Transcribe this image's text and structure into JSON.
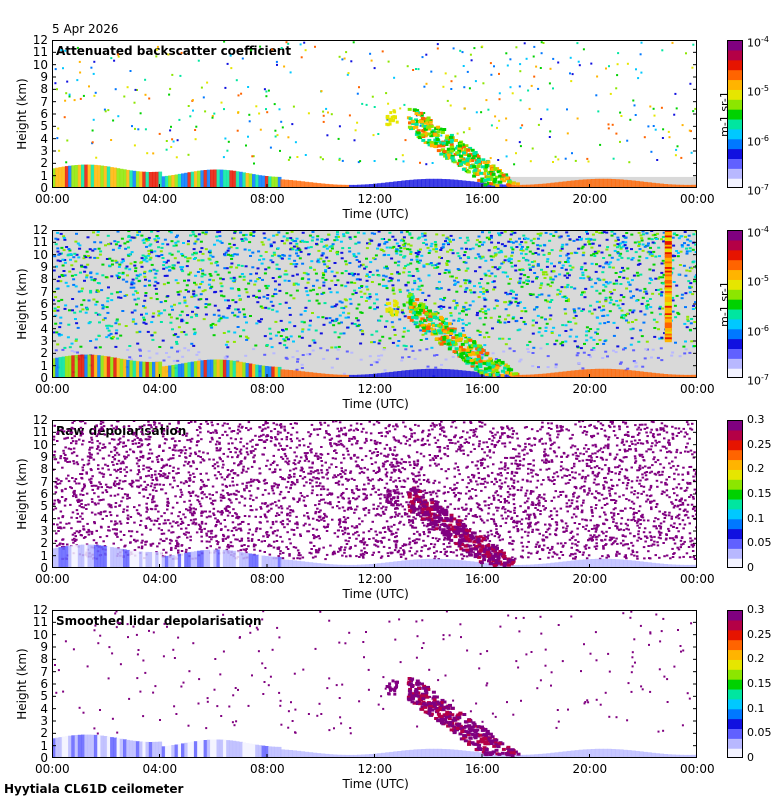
{
  "date": "5 Apr 2026",
  "footer": "Hyytiala CL61D ceilometer",
  "colors": {
    "rainbow": [
      "#f2f2ff",
      "#b8b8ff",
      "#6060ff",
      "#1010e0",
      "#0078ff",
      "#00c8ff",
      "#00e6a0",
      "#00d200",
      "#8ce600",
      "#e6e600",
      "#ffb400",
      "#ff6400",
      "#e61400",
      "#b40046",
      "#800080"
    ],
    "background_gray": "#d9d9d9"
  },
  "chart_data": [
    {
      "type": "heatmap",
      "title": "Attenuated backscatter coefficient",
      "xlabel": "Time (UTC)",
      "ylabel": "Height (km)",
      "x_ticks": [
        "00:00",
        "04:00",
        "08:00",
        "12:00",
        "16:00",
        "20:00",
        "00:00"
      ],
      "y_ticks": [
        "0",
        "1",
        "2",
        "3",
        "4",
        "5",
        "6",
        "7",
        "8",
        "9",
        "10",
        "11",
        "12"
      ],
      "ylim": [
        0,
        12
      ],
      "xlim_hours": [
        0,
        24
      ],
      "colorbar": {
        "scale": "log",
        "labels": [
          "10-7",
          "10-6",
          "10-5",
          "10-4"
        ],
        "unit": "m-1 sr-1"
      }
    },
    {
      "type": "heatmap",
      "title": "Raw attenuated backscatter coefficient",
      "xlabel": "Time (UTC)",
      "ylabel": "Height (km)",
      "x_ticks": [
        "00:00",
        "04:00",
        "08:00",
        "12:00",
        "16:00",
        "20:00",
        "00:00"
      ],
      "y_ticks": [
        "0",
        "1",
        "2",
        "3",
        "4",
        "5",
        "6",
        "7",
        "8",
        "9",
        "10",
        "11",
        "12"
      ],
      "ylim": [
        0,
        12
      ],
      "xlim_hours": [
        0,
        24
      ],
      "colorbar": {
        "scale": "log",
        "labels": [
          "10-7",
          "10-6",
          "10-5",
          "10-4"
        ],
        "unit": "m-1 sr-1"
      }
    },
    {
      "type": "heatmap",
      "title": "Raw depolarisation",
      "xlabel": "Time (UTC)",
      "ylabel": "Height (km)",
      "x_ticks": [
        "00:00",
        "04:00",
        "08:00",
        "12:00",
        "16:00",
        "20:00",
        "00:00"
      ],
      "y_ticks": [
        "0",
        "1",
        "2",
        "3",
        "4",
        "5",
        "6",
        "7",
        "8",
        "9",
        "10",
        "11",
        "12"
      ],
      "ylim": [
        0,
        12
      ],
      "xlim_hours": [
        0,
        24
      ],
      "colorbar": {
        "scale": "linear",
        "labels": [
          "0",
          "0.05",
          "0.1",
          "0.15",
          "0.2",
          "0.25",
          "0.3"
        ]
      }
    },
    {
      "type": "heatmap",
      "title": "Smoothed lidar depolarisation",
      "xlabel": "Time (UTC)",
      "ylabel": "Height (km)",
      "x_ticks": [
        "00:00",
        "04:00",
        "08:00",
        "12:00",
        "16:00",
        "20:00",
        "00:00"
      ],
      "y_ticks": [
        "0",
        "1",
        "2",
        "3",
        "4",
        "5",
        "6",
        "7",
        "8",
        "9",
        "10",
        "11",
        "12"
      ],
      "ylim": [
        0,
        12
      ],
      "xlim_hours": [
        0,
        24
      ],
      "colorbar": {
        "scale": "linear",
        "labels": [
          "0",
          "0.05",
          "0.1",
          "0.15",
          "0.2",
          "0.25",
          "0.3"
        ]
      }
    }
  ]
}
